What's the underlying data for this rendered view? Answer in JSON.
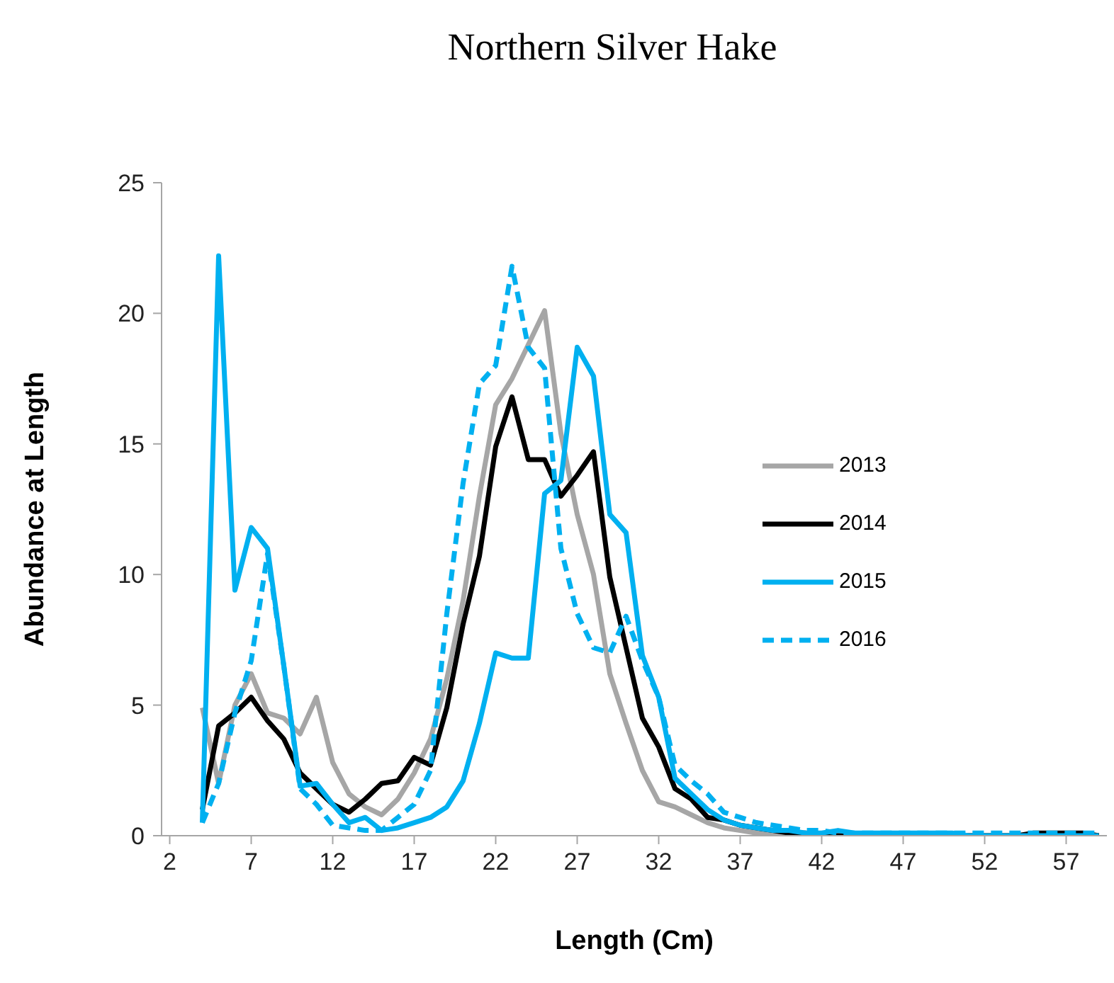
{
  "chart_data": {
    "type": "line",
    "title": "Northern Silver Hake",
    "xlabel": "Length (Cm)",
    "ylabel": "Abundance at Length",
    "x": [
      4,
      5,
      6,
      7,
      8,
      9,
      10,
      11,
      12,
      13,
      14,
      15,
      16,
      17,
      18,
      19,
      20,
      21,
      22,
      23,
      24,
      25,
      26,
      27,
      28,
      29,
      30,
      31,
      32,
      33,
      34,
      35,
      36,
      37,
      38,
      39,
      40,
      41,
      42,
      43,
      44,
      45,
      46,
      47,
      48,
      49,
      50,
      51,
      52,
      53,
      54,
      55,
      56,
      57,
      58,
      59
    ],
    "xlim": [
      1.5,
      59.5
    ],
    "xticks": [
      2,
      7,
      12,
      17,
      22,
      27,
      32,
      37,
      42,
      47,
      52,
      57
    ],
    "ylim": [
      0,
      25
    ],
    "yticks": [
      0,
      5,
      10,
      15,
      20,
      25
    ],
    "grid": false,
    "legend": "right",
    "marker": "none",
    "series": [
      {
        "name": "2013",
        "color": "#a6a6a6",
        "line_style": "solid",
        "values": [
          4.9,
          2.0,
          5.0,
          6.2,
          4.7,
          4.5,
          3.9,
          5.3,
          2.8,
          1.6,
          1.1,
          0.8,
          1.4,
          2.4,
          3.7,
          6.0,
          9.0,
          13.0,
          16.5,
          17.5,
          18.8,
          20.1,
          15.4,
          12.3,
          10.0,
          6.2,
          4.3,
          2.5,
          1.3,
          1.1,
          0.8,
          0.5,
          0.3,
          0.2,
          0.1,
          0.1,
          0.1,
          0,
          0,
          0,
          0,
          0,
          0,
          0,
          0,
          0,
          0,
          0,
          0,
          0,
          0,
          0,
          0,
          0,
          0,
          0
        ]
      },
      {
        "name": "2014",
        "color": "#000000",
        "line_style": "solid",
        "values": [
          1.0,
          4.2,
          4.7,
          5.3,
          4.4,
          3.7,
          2.4,
          1.8,
          1.2,
          0.9,
          1.4,
          2.0,
          2.1,
          3.0,
          2.7,
          4.9,
          8.1,
          10.7,
          14.9,
          16.8,
          14.4,
          14.4,
          13.0,
          13.8,
          14.7,
          9.9,
          7.2,
          4.5,
          3.4,
          1.8,
          1.4,
          0.7,
          0.6,
          0.4,
          0.3,
          0.2,
          0.1,
          0.1,
          0,
          0,
          0,
          0,
          0,
          0,
          0,
          0,
          0,
          0,
          0,
          0,
          0,
          0.1,
          0.1,
          0.1,
          0.1,
          0
        ]
      },
      {
        "name": "2015",
        "color": "#00b0f0",
        "line_style": "solid",
        "values": [
          0.5,
          22.2,
          9.4,
          11.8,
          11.0,
          6.5,
          1.9,
          2.0,
          1.2,
          0.5,
          0.7,
          0.2,
          0.3,
          0.5,
          0.7,
          1.1,
          2.1,
          4.3,
          7.0,
          6.8,
          6.8,
          13.1,
          13.6,
          18.7,
          17.6,
          12.3,
          11.6,
          6.9,
          5.3,
          2.2,
          1.6,
          1.0,
          0.6,
          0.4,
          0.3,
          0.2,
          0.2,
          0.1,
          0.1,
          0.2,
          0.1,
          0.1,
          0.1,
          0.1,
          0.1,
          0.1,
          0.1,
          0,
          0,
          0,
          0,
          0,
          0,
          0,
          0,
          0
        ]
      },
      {
        "name": "2016",
        "color": "#00b0f0",
        "line_style": "dashed",
        "values": [
          0.5,
          2.0,
          4.7,
          6.7,
          10.8,
          6.5,
          1.8,
          1.2,
          0.4,
          0.3,
          0.2,
          0.2,
          0.7,
          1.2,
          2.5,
          8.5,
          13.5,
          17.3,
          18.0,
          21.8,
          18.7,
          17.9,
          11.0,
          8.5,
          7.2,
          7.0,
          8.4,
          6.7,
          5.3,
          2.7,
          2.1,
          1.6,
          0.9,
          0.7,
          0.5,
          0.4,
          0.3,
          0.2,
          0.2,
          0.1,
          0.1,
          0.1,
          0.1,
          0.1,
          0.1,
          0.1,
          0.1,
          0.1,
          0.1,
          0.1,
          0.1,
          0.1,
          0.1,
          0.1,
          0.1,
          0.1
        ]
      }
    ]
  }
}
